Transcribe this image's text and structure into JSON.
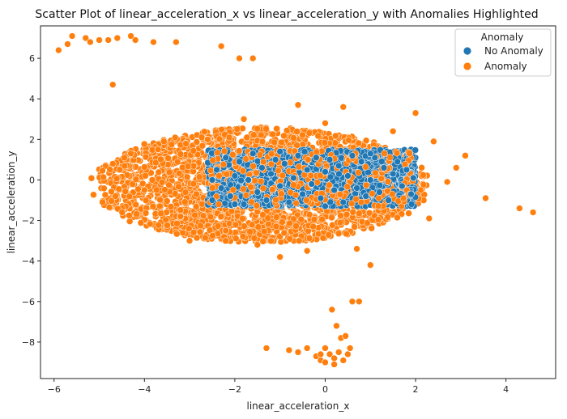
{
  "chart_data": {
    "type": "scatter",
    "title": "Scatter Plot of linear_acceleration_x vs linear_acceleration_y with Anomalies Highlighted",
    "xlabel": "linear_acceleration_x",
    "ylabel": "linear_acceleration_y",
    "xlim": [
      -6.3,
      5.1
    ],
    "ylim": [
      -9.8,
      7.6
    ],
    "xticks": [
      -6,
      -4,
      -2,
      0,
      2,
      4
    ],
    "yticks": [
      -8,
      -6,
      -4,
      -2,
      0,
      2,
      4,
      6
    ],
    "grid": false,
    "legend": {
      "title": "Anomaly",
      "placement": "top-right"
    },
    "series": [
      {
        "name": "No Anomaly",
        "color": "#1f77b4",
        "description_region": {
          "x": [
            -2.6,
            2.0
          ],
          "y": [
            -1.3,
            1.5
          ]
        },
        "points": [
          [
            -2.5,
            -1.0
          ],
          [
            -2.4,
            0.5
          ],
          [
            -2.3,
            -0.4
          ],
          [
            -2.2,
            1.1
          ],
          [
            -2.1,
            -0.8
          ],
          [
            -2.0,
            0.2
          ],
          [
            -1.9,
            0.9
          ],
          [
            -1.8,
            -1.2
          ],
          [
            -1.7,
            0.0
          ],
          [
            -1.6,
            1.3
          ],
          [
            -1.5,
            -0.6
          ],
          [
            -1.4,
            0.6
          ],
          [
            -1.3,
            -1.0
          ],
          [
            -1.2,
            0.3
          ],
          [
            -1.1,
            1.0
          ],
          [
            -1.0,
            -0.3
          ],
          [
            -0.9,
            0.8
          ],
          [
            -0.8,
            -1.1
          ],
          [
            -0.7,
            0.1
          ],
          [
            -0.6,
            1.2
          ],
          [
            -0.5,
            -0.7
          ],
          [
            -0.4,
            0.5
          ],
          [
            -0.3,
            -0.2
          ],
          [
            -0.2,
            1.1
          ],
          [
            -0.1,
            -0.9
          ],
          [
            0.0,
            0.4
          ],
          [
            0.1,
            1.0
          ],
          [
            0.2,
            -0.5
          ],
          [
            0.3,
            0.7
          ],
          [
            0.4,
            -1.1
          ],
          [
            0.5,
            0.2
          ],
          [
            0.6,
            1.2
          ],
          [
            0.7,
            -0.4
          ],
          [
            0.8,
            0.9
          ],
          [
            0.9,
            -0.8
          ],
          [
            1.0,
            0.0
          ],
          [
            1.1,
            1.1
          ],
          [
            1.2,
            -0.6
          ],
          [
            1.3,
            0.6
          ],
          [
            1.4,
            -1.0
          ],
          [
            1.5,
            0.3
          ],
          [
            1.6,
            0.9
          ],
          [
            1.7,
            -0.3
          ],
          [
            1.8,
            0.5
          ],
          [
            1.9,
            -0.7
          ],
          [
            -2.0,
            -1.2
          ],
          [
            -1.0,
            1.4
          ],
          [
            0.0,
            -1.3
          ],
          [
            1.0,
            1.3
          ],
          [
            -2.5,
            0.0
          ],
          [
            1.95,
            0.1
          ]
        ]
      },
      {
        "name": "Anomaly",
        "color": "#ff7f0e",
        "description_region": {
          "x": [
            -4.7,
            2.6
          ],
          "y": [
            -3.9,
            3.4
          ]
        },
        "points": [
          [
            -5.9,
            6.4
          ],
          [
            -5.7,
            6.7
          ],
          [
            -5.6,
            7.1
          ],
          [
            -5.3,
            7.0
          ],
          [
            -5.2,
            6.8
          ],
          [
            -5.0,
            6.9
          ],
          [
            -4.8,
            6.9
          ],
          [
            -4.6,
            7.0
          ],
          [
            -4.3,
            7.1
          ],
          [
            -4.2,
            6.9
          ],
          [
            -3.8,
            6.8
          ],
          [
            -3.3,
            6.8
          ],
          [
            -2.3,
            6.6
          ],
          [
            -1.9,
            6.0
          ],
          [
            -1.6,
            6.0
          ],
          [
            -4.7,
            4.7
          ],
          [
            -4.7,
            0.8
          ],
          [
            -4.3,
            1.3
          ],
          [
            -4.0,
            -0.5
          ],
          [
            -3.7,
            1.5
          ],
          [
            -3.2,
            -1.8
          ],
          [
            -3.0,
            -3.0
          ],
          [
            -2.6,
            2.0
          ],
          [
            -2.2,
            -2.5
          ],
          [
            -1.8,
            3.0
          ],
          [
            -1.5,
            -3.2
          ],
          [
            -1.0,
            -3.8
          ],
          [
            -0.6,
            3.7
          ],
          [
            -0.4,
            -3.5
          ],
          [
            0.0,
            2.8
          ],
          [
            0.4,
            3.6
          ],
          [
            0.7,
            -3.4
          ],
          [
            1.0,
            -4.2
          ],
          [
            1.5,
            2.4
          ],
          [
            2.0,
            3.3
          ],
          [
            2.3,
            -1.9
          ],
          [
            2.4,
            1.9
          ],
          [
            2.7,
            -0.1
          ],
          [
            2.9,
            0.6
          ],
          [
            3.1,
            1.2
          ],
          [
            3.55,
            -0.9
          ],
          [
            4.3,
            -1.4
          ],
          [
            4.6,
            -1.6
          ],
          [
            0.6,
            -6.0
          ],
          [
            0.75,
            -6.0
          ],
          [
            0.15,
            -6.4
          ],
          [
            0.25,
            -7.2
          ],
          [
            0.35,
            -7.8
          ],
          [
            0.45,
            -7.7
          ],
          [
            -1.3,
            -8.3
          ],
          [
            -0.8,
            -8.4
          ],
          [
            -0.6,
            -8.5
          ],
          [
            -0.4,
            -8.3
          ],
          [
            -0.2,
            -8.7
          ],
          [
            -0.1,
            -8.9
          ],
          [
            0.0,
            -8.3
          ],
          [
            0.1,
            -8.6
          ],
          [
            0.2,
            -8.8
          ],
          [
            0.3,
            -8.5
          ],
          [
            0.4,
            -8.9
          ],
          [
            0.5,
            -8.6
          ],
          [
            0.55,
            -8.3
          ],
          [
            0.0,
            -9.0
          ],
          [
            0.2,
            -9.1
          ],
          [
            -0.1,
            -8.6
          ]
        ]
      }
    ]
  }
}
